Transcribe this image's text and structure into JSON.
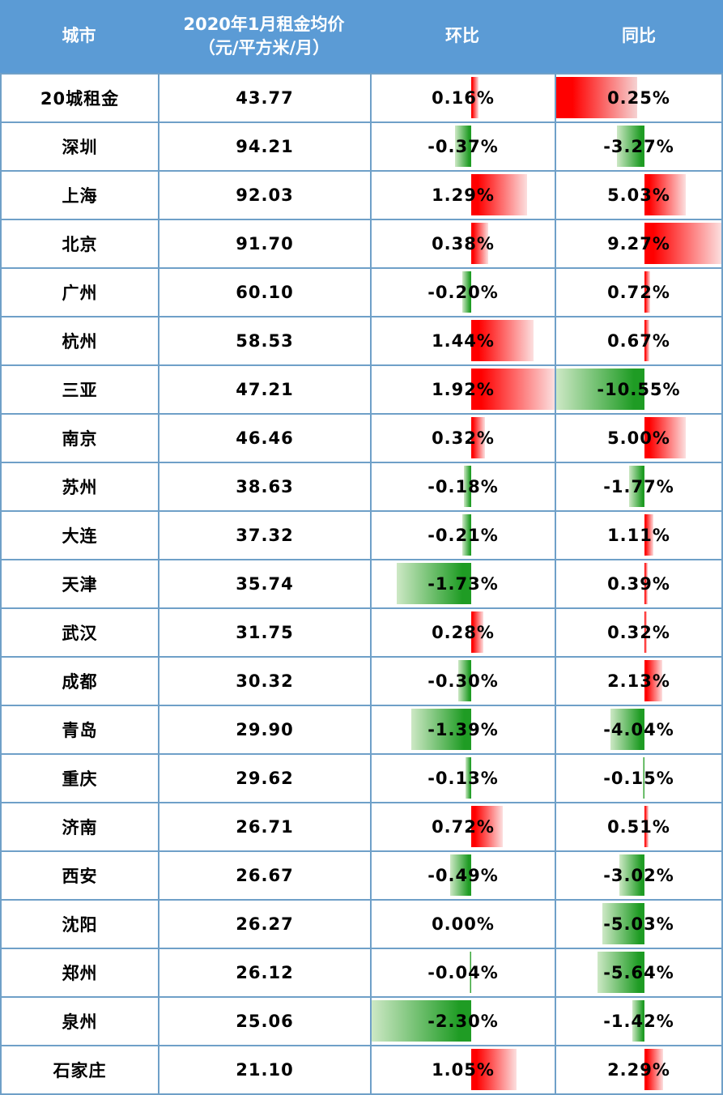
{
  "header": {
    "columns": [
      {
        "label": "城市"
      },
      {
        "label": "2020年1月租金均价",
        "label2": "（元/平方米/月）"
      },
      {
        "label": "环比"
      },
      {
        "label": "同比"
      }
    ]
  },
  "colors": {
    "header_bg": "#5B9BD5",
    "header_text": "#FFFFFF",
    "grid": "#6FA0C8",
    "bar_red": "#FF0000",
    "bar_red_fade": "#FCDFDF",
    "bar_override_red_fade": "#F6D2D2",
    "bar_green": "#1F9C24",
    "bar_green_fade": "#CDE8C5",
    "text": "#000000"
  },
  "chart_data": {
    "type": "table",
    "title": "2020年1月20城租金均价及环比、同比变动",
    "columns": [
      "城市",
      "2020年1月租金均价（元/平方米/月）",
      "环比",
      "同比"
    ],
    "databars": {
      "mom": {
        "min": -2.3,
        "max": 1.92,
        "positive_color": "#FF0000",
        "negative_color": "#1F9C24"
      },
      "yoy": {
        "min": -10.55,
        "max": 9.27,
        "positive_color": "#FF0000",
        "negative_color": "#1F9C24"
      }
    },
    "rows": [
      {
        "city": "20城租金",
        "price": "43.77",
        "mom": 0.16,
        "mom_label": "0.16%",
        "yoy": 0.25,
        "yoy_label": "0.25%",
        "yoy_bar_override": {
          "start_frac": 0.0,
          "end_frac": 0.49,
          "style": "red-solid-left"
        }
      },
      {
        "city": "深圳",
        "price": "94.21",
        "mom": -0.37,
        "mom_label": "-0.37%",
        "yoy": -3.27,
        "yoy_label": "-3.27%"
      },
      {
        "city": "上海",
        "price": "92.03",
        "mom": 1.29,
        "mom_label": "1.29%",
        "yoy": 5.03,
        "yoy_label": "5.03%"
      },
      {
        "city": "北京",
        "price": "91.70",
        "mom": 0.38,
        "mom_label": "0.38%",
        "yoy": 9.27,
        "yoy_label": "9.27%"
      },
      {
        "city": "广州",
        "price": "60.10",
        "mom": -0.2,
        "mom_label": "-0.20%",
        "yoy": 0.72,
        "yoy_label": "0.72%"
      },
      {
        "city": "杭州",
        "price": "58.53",
        "mom": 1.44,
        "mom_label": "1.44%",
        "yoy": 0.67,
        "yoy_label": "0.67%"
      },
      {
        "city": "三亚",
        "price": "47.21",
        "mom": 1.92,
        "mom_label": "1.92%",
        "yoy": -10.55,
        "yoy_label": "-10.55%"
      },
      {
        "city": "南京",
        "price": "46.46",
        "mom": 0.32,
        "mom_label": "0.32%",
        "yoy": 5.0,
        "yoy_label": "5.00%"
      },
      {
        "city": "苏州",
        "price": "38.63",
        "mom": -0.18,
        "mom_label": "-0.18%",
        "yoy": -1.77,
        "yoy_label": "-1.77%"
      },
      {
        "city": "大连",
        "price": "37.32",
        "mom": -0.21,
        "mom_label": "-0.21%",
        "yoy": 1.11,
        "yoy_label": "1.11%"
      },
      {
        "city": "天津",
        "price": "35.74",
        "mom": -1.73,
        "mom_label": "-1.73%",
        "yoy": 0.39,
        "yoy_label": "0.39%"
      },
      {
        "city": "武汉",
        "price": "31.75",
        "mom": 0.28,
        "mom_label": "0.28%",
        "yoy": 0.32,
        "yoy_label": "0.32%"
      },
      {
        "city": "成都",
        "price": "30.32",
        "mom": -0.3,
        "mom_label": "-0.30%",
        "yoy": 2.13,
        "yoy_label": "2.13%"
      },
      {
        "city": "青岛",
        "price": "29.90",
        "mom": -1.39,
        "mom_label": "-1.39%",
        "yoy": -4.04,
        "yoy_label": "-4.04%"
      },
      {
        "city": "重庆",
        "price": "29.62",
        "mom": -0.13,
        "mom_label": "-0.13%",
        "yoy": -0.15,
        "yoy_label": "-0.15%"
      },
      {
        "city": "济南",
        "price": "26.71",
        "mom": 0.72,
        "mom_label": "0.72%",
        "yoy": 0.51,
        "yoy_label": "0.51%"
      },
      {
        "city": "西安",
        "price": "26.67",
        "mom": -0.49,
        "mom_label": "-0.49%",
        "yoy": -3.02,
        "yoy_label": "-3.02%"
      },
      {
        "city": "沈阳",
        "price": "26.27",
        "mom": 0.0,
        "mom_label": "0.00%",
        "yoy": -5.03,
        "yoy_label": "-5.03%"
      },
      {
        "city": "郑州",
        "price": "26.12",
        "mom": -0.04,
        "mom_label": "-0.04%",
        "yoy": -5.64,
        "yoy_label": "-5.64%"
      },
      {
        "city": "泉州",
        "price": "25.06",
        "mom": -2.3,
        "mom_label": "-2.30%",
        "yoy": -1.42,
        "yoy_label": "-1.42%"
      },
      {
        "city": "石家庄",
        "price": "21.10",
        "mom": 1.05,
        "mom_label": "1.05%",
        "yoy": 2.29,
        "yoy_label": "2.29%"
      }
    ]
  }
}
